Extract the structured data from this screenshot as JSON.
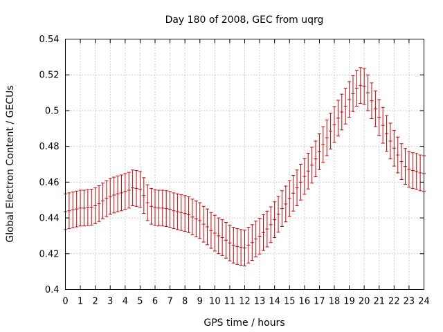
{
  "chart_data": {
    "type": "line",
    "title": "Day 180 of 2008, GEC from uqrg",
    "xlabel": "GPS time / hours",
    "ylabel": "Global Electron Content / GECUs",
    "xlim": [
      0,
      24
    ],
    "ylim": [
      0.4,
      0.54
    ],
    "x_ticks": [
      0,
      1,
      2,
      3,
      4,
      5,
      6,
      7,
      8,
      9,
      10,
      11,
      12,
      13,
      14,
      15,
      16,
      17,
      18,
      19,
      20,
      21,
      22,
      23,
      24
    ],
    "y_ticks": [
      0.4,
      0.42,
      0.44,
      0.46,
      0.48,
      0.5,
      0.52,
      0.54
    ],
    "y_tick_labels": [
      "0.4",
      "0.42",
      "0.44",
      "0.46",
      "0.48",
      "0.5",
      "0.52",
      "0.54"
    ],
    "grid": true,
    "error_bars": true,
    "series": [
      {
        "color": "#cc0000",
        "error": 0.01,
        "x": [
          0,
          0.25,
          0.5,
          0.75,
          1,
          1.25,
          1.5,
          1.75,
          2,
          2.25,
          2.5,
          2.75,
          3,
          3.25,
          3.5,
          3.75,
          4,
          4.25,
          4.5,
          4.75,
          5,
          5.25,
          5.5,
          5.75,
          6,
          6.25,
          6.5,
          6.75,
          7,
          7.25,
          7.5,
          7.75,
          8,
          8.25,
          8.5,
          8.75,
          9,
          9.25,
          9.5,
          9.75,
          10,
          10.25,
          10.5,
          10.75,
          11,
          11.25,
          11.5,
          11.75,
          12,
          12.25,
          12.5,
          12.75,
          13,
          13.25,
          13.5,
          13.75,
          14,
          14.25,
          14.5,
          14.75,
          15,
          15.25,
          15.5,
          15.75,
          16,
          16.25,
          16.5,
          16.75,
          17,
          17.25,
          17.5,
          17.75,
          18,
          18.25,
          18.5,
          18.75,
          19,
          19.25,
          19.5,
          19.75,
          20,
          20.25,
          20.5,
          20.75,
          21,
          21.25,
          21.5,
          21.75,
          22,
          22.25,
          22.5,
          22.75,
          23,
          23.25,
          23.5,
          23.75,
          24
        ],
        "y": [
          0.4435,
          0.444,
          0.4445,
          0.445,
          0.4455,
          0.4455,
          0.4458,
          0.446,
          0.4468,
          0.448,
          0.4495,
          0.4508,
          0.452,
          0.4528,
          0.4535,
          0.454,
          0.4548,
          0.4555,
          0.4568,
          0.4565,
          0.456,
          0.4525,
          0.4485,
          0.4465,
          0.4458,
          0.4455,
          0.4455,
          0.4452,
          0.4448,
          0.444,
          0.4435,
          0.443,
          0.4425,
          0.4418,
          0.4405,
          0.4395,
          0.4385,
          0.4365,
          0.435,
          0.433,
          0.4315,
          0.43,
          0.429,
          0.4275,
          0.426,
          0.4248,
          0.424,
          0.4235,
          0.4232,
          0.4248,
          0.4262,
          0.4282,
          0.4298,
          0.4318,
          0.4338,
          0.4362,
          0.439,
          0.442,
          0.4452,
          0.4478,
          0.4508,
          0.4538,
          0.4568,
          0.46,
          0.4632,
          0.4662,
          0.4695,
          0.473,
          0.477,
          0.481,
          0.4848,
          0.4885,
          0.4922,
          0.4958,
          0.4992,
          0.5025,
          0.5062,
          0.5095,
          0.5125,
          0.514,
          0.5135,
          0.51,
          0.5055,
          0.501,
          0.4962,
          0.4918,
          0.4872,
          0.483,
          0.479,
          0.4752,
          0.4715,
          0.4688,
          0.4672,
          0.4665,
          0.466,
          0.4652,
          0.4648
        ]
      }
    ]
  }
}
